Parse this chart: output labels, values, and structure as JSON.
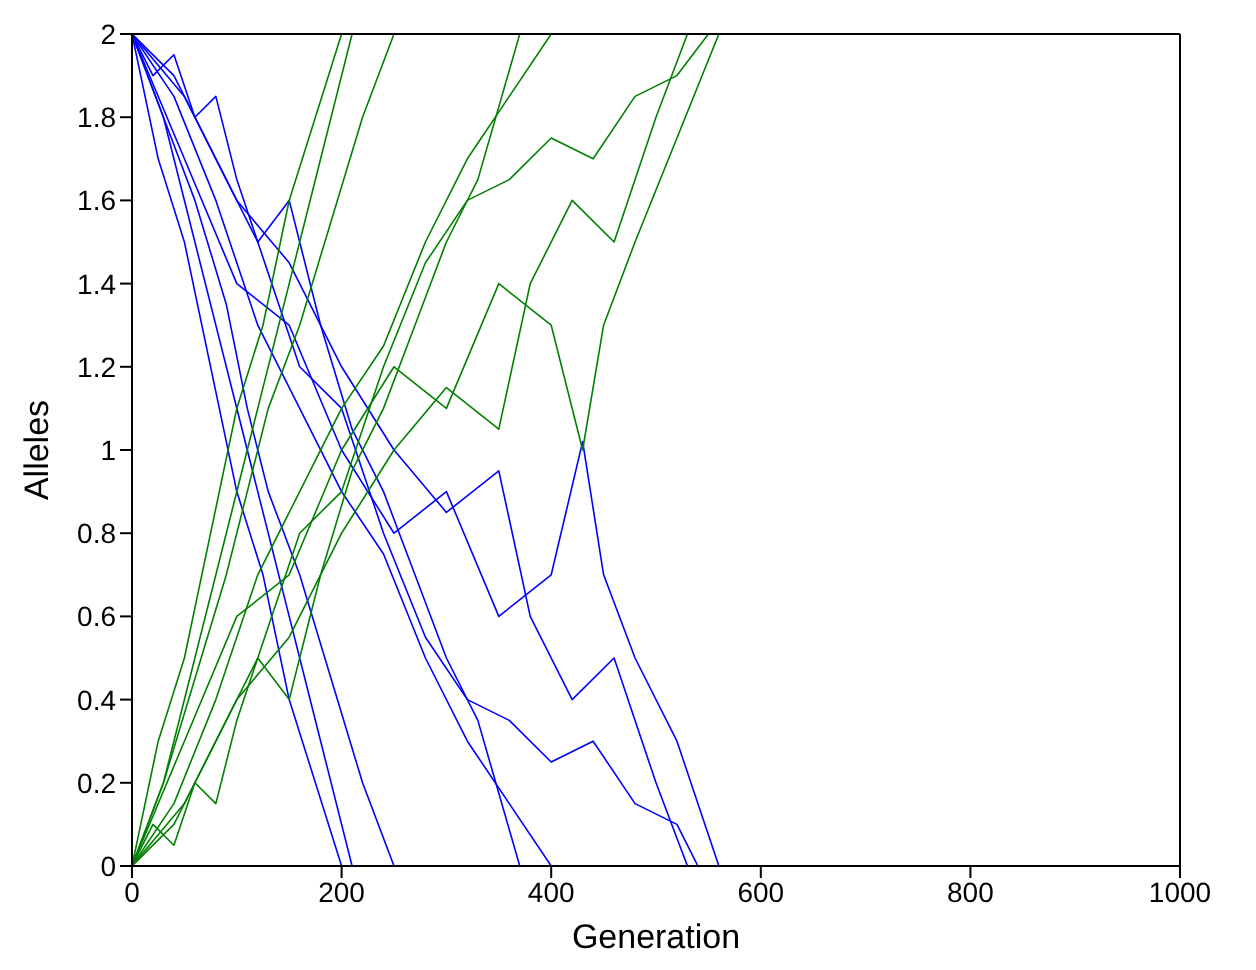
{
  "chart_data": {
    "type": "line",
    "xlabel": "Generation",
    "ylabel": "Alleles",
    "xlim": [
      0,
      1000
    ],
    "xticks": [
      0,
      200,
      400,
      600,
      800,
      1000
    ],
    "ylim": [
      0,
      2
    ],
    "yticks": [
      0,
      0.2,
      0.4,
      0.6,
      0.8,
      1,
      1.2,
      1.4,
      1.6,
      1.8,
      2
    ],
    "series": [
      {
        "color": "#0000ff",
        "x": [
          0,
          30,
          60,
          90,
          120,
          150,
          180,
          210
        ],
        "values": [
          2,
          1.8,
          1.5,
          1.2,
          0.9,
          0.6,
          0.3,
          0
        ]
      },
      {
        "color": "#0000ff",
        "x": [
          0,
          40,
          80,
          120,
          160,
          200,
          240,
          280,
          320,
          360,
          400
        ],
        "values": [
          2,
          1.85,
          1.6,
          1.3,
          1.1,
          0.9,
          0.75,
          0.5,
          0.3,
          0.15,
          0
        ]
      },
      {
        "color": "#0000ff",
        "x": [
          0,
          50,
          100,
          150,
          200,
          250,
          300,
          350,
          400,
          430,
          450,
          480,
          520,
          560
        ],
        "values": [
          2,
          1.7,
          1.4,
          1.3,
          1,
          0.8,
          0.9,
          0.6,
          0.7,
          1.02,
          0.7,
          0.5,
          0.3,
          0
        ]
      },
      {
        "color": "#0000ff",
        "x": [
          0,
          40,
          80,
          120,
          160,
          200,
          240,
          280,
          320,
          360,
          400,
          440,
          480,
          520,
          540
        ],
        "values": [
          2,
          1.9,
          1.7,
          1.5,
          1.2,
          1.1,
          0.8,
          0.55,
          0.4,
          0.35,
          0.25,
          0.3,
          0.15,
          0.1,
          0
        ]
      },
      {
        "color": "#0000ff",
        "x": [
          0,
          30,
          60,
          90,
          110,
          130,
          160,
          190,
          220,
          250
        ],
        "values": [
          2,
          1.8,
          1.6,
          1.35,
          1.1,
          0.9,
          0.7,
          0.45,
          0.2,
          0
        ]
      },
      {
        "color": "#0000ff",
        "x": [
          0,
          50,
          100,
          150,
          200,
          250,
          300,
          350,
          380,
          420,
          460,
          500,
          530
        ],
        "values": [
          2,
          1.85,
          1.6,
          1.45,
          1.2,
          1,
          0.85,
          0.95,
          0.6,
          0.4,
          0.5,
          0.2,
          0
        ]
      },
      {
        "color": "#0000ff",
        "x": [
          0,
          25,
          50,
          75,
          100,
          125,
          150,
          175,
          200
        ],
        "values": [
          2,
          1.7,
          1.5,
          1.2,
          0.9,
          0.7,
          0.4,
          0.2,
          0
        ]
      },
      {
        "color": "#0000ff",
        "x": [
          0,
          20,
          40,
          60,
          80,
          100,
          120,
          150,
          180,
          210,
          240,
          270,
          300,
          330,
          370
        ],
        "values": [
          2,
          1.9,
          1.95,
          1.8,
          1.85,
          1.65,
          1.5,
          1.6,
          1.3,
          1.05,
          0.9,
          0.7,
          0.5,
          0.35,
          0
        ]
      },
      {
        "color": "#008000",
        "x": [
          0,
          30,
          60,
          90,
          120,
          150,
          180,
          210
        ],
        "values": [
          0,
          0.2,
          0.5,
          0.8,
          1.1,
          1.4,
          1.7,
          2
        ]
      },
      {
        "color": "#008000",
        "x": [
          0,
          40,
          80,
          120,
          160,
          200,
          240,
          280,
          320,
          360,
          400
        ],
        "values": [
          0,
          0.15,
          0.4,
          0.7,
          0.9,
          1.1,
          1.25,
          1.5,
          1.7,
          1.85,
          2
        ]
      },
      {
        "color": "#008000",
        "x": [
          0,
          50,
          100,
          150,
          200,
          250,
          300,
          350,
          400,
          430,
          450,
          480,
          520,
          560
        ],
        "values": [
          0,
          0.3,
          0.6,
          0.7,
          1,
          1.2,
          1.1,
          1.4,
          1.3,
          1,
          1.3,
          1.5,
          1.75,
          2
        ]
      },
      {
        "color": "#008000",
        "x": [
          0,
          40,
          80,
          120,
          160,
          200,
          240,
          280,
          320,
          360,
          400,
          440,
          480,
          520,
          550
        ],
        "values": [
          0,
          0.1,
          0.3,
          0.5,
          0.8,
          0.9,
          1.2,
          1.45,
          1.6,
          1.65,
          1.75,
          1.7,
          1.85,
          1.9,
          2
        ]
      },
      {
        "color": "#008000",
        "x": [
          0,
          30,
          60,
          90,
          110,
          130,
          160,
          190,
          220,
          250
        ],
        "values": [
          0,
          0.2,
          0.45,
          0.7,
          0.9,
          1.1,
          1.3,
          1.55,
          1.8,
          2
        ]
      },
      {
        "color": "#008000",
        "x": [
          0,
          50,
          100,
          150,
          200,
          250,
          300,
          350,
          380,
          420,
          460,
          500,
          530
        ],
        "values": [
          0,
          0.15,
          0.4,
          0.55,
          0.8,
          1,
          1.15,
          1.05,
          1.4,
          1.6,
          1.5,
          1.8,
          2
        ]
      },
      {
        "color": "#008000",
        "x": [
          0,
          25,
          50,
          75,
          100,
          125,
          150,
          175,
          200
        ],
        "values": [
          0,
          0.3,
          0.5,
          0.8,
          1.1,
          1.3,
          1.6,
          1.8,
          2
        ]
      },
      {
        "color": "#008000",
        "x": [
          0,
          20,
          40,
          60,
          80,
          100,
          120,
          150,
          180,
          210,
          240,
          270,
          300,
          330,
          370
        ],
        "values": [
          0,
          0.1,
          0.05,
          0.2,
          0.15,
          0.35,
          0.5,
          0.4,
          0.7,
          0.95,
          1.1,
          1.3,
          1.5,
          1.65,
          2
        ]
      }
    ]
  }
}
